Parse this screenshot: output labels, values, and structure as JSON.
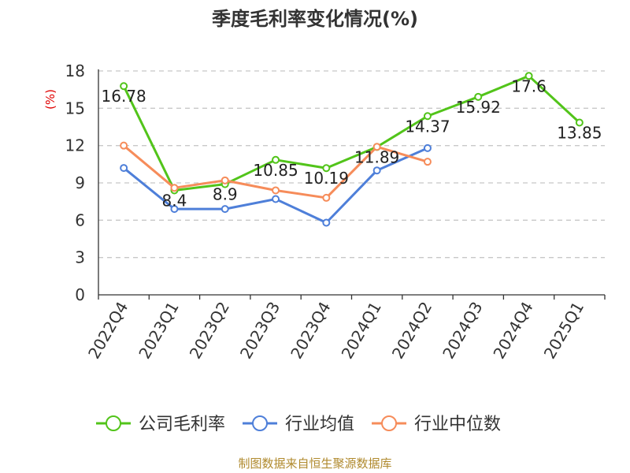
{
  "chart_data": {
    "type": "line",
    "title": "季度毛利率变化情况(%)",
    "ylabel": "(%)",
    "ylim": [
      0,
      18
    ],
    "yticks": [
      "0",
      "3",
      "6",
      "9",
      "12",
      "15",
      "18"
    ],
    "categories": [
      "2022Q4",
      "2023Q1",
      "2023Q2",
      "2023Q3",
      "2023Q4",
      "2024Q1",
      "2024Q2",
      "2024Q3",
      "2024Q4",
      "2025Q1"
    ],
    "series": [
      {
        "name": "公司毛利率",
        "color": "#52c41a",
        "values": [
          16.78,
          8.4,
          8.9,
          10.85,
          10.19,
          11.89,
          14.37,
          15.92,
          17.6,
          13.85
        ],
        "labels": [
          "16.78",
          "8.4",
          "8.9",
          "10.85",
          "10.19",
          "11.89",
          "14.37",
          "15.92",
          "17.6",
          "13.85"
        ]
      },
      {
        "name": "行业均值",
        "color": "#4e7fd9",
        "values": [
          10.2,
          6.9,
          6.9,
          7.7,
          5.8,
          10.0,
          11.8,
          null,
          null,
          null
        ]
      },
      {
        "name": "行业中位数",
        "color": "#f68c5a",
        "values": [
          12.0,
          8.6,
          9.2,
          8.4,
          7.8,
          11.9,
          10.7,
          null,
          null,
          null
        ]
      }
    ],
    "grid": true,
    "legend_position": "bottom",
    "source": "制图数据来自恒生聚源数据库"
  }
}
